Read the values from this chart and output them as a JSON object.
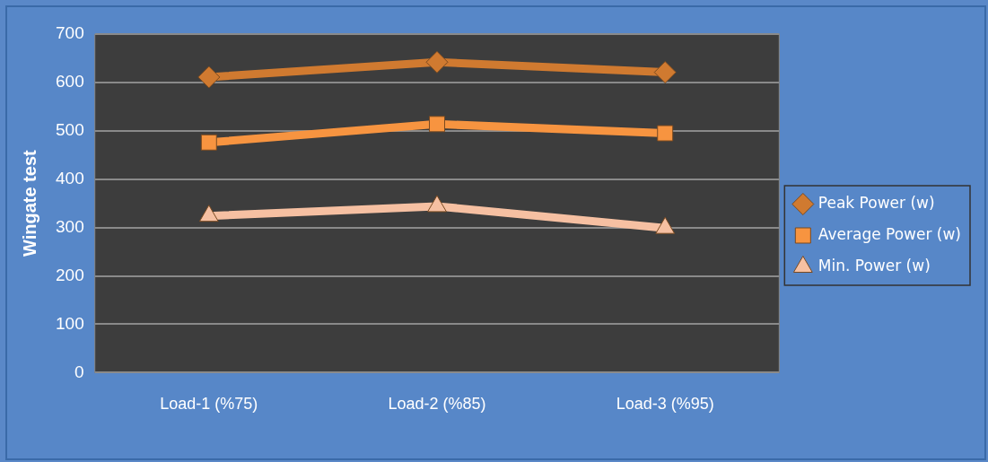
{
  "chart_data": {
    "type": "line",
    "ylabel": "Wingate test",
    "categories": [
      "Load-1 (%75)",
      "Load-2 (%85)",
      "Load-3 (%95)"
    ],
    "series": [
      {
        "name": "Peak Power (w)",
        "color": "#d07a30",
        "marker": "diamond",
        "values": [
          611,
          642,
          621
        ]
      },
      {
        "name": "Average Power (w)",
        "color": "#f79440",
        "marker": "square",
        "values": [
          476,
          514,
          495
        ]
      },
      {
        "name": "Min. Power (w)",
        "color": "#f6c0a2",
        "marker": "triangle",
        "values": [
          324,
          344,
          299
        ]
      }
    ],
    "ylim": [
      0,
      700
    ],
    "yticks": [
      0,
      100,
      200,
      300,
      400,
      500,
      600,
      700
    ],
    "grid": "y",
    "legend": "right",
    "line_style": "solid"
  }
}
